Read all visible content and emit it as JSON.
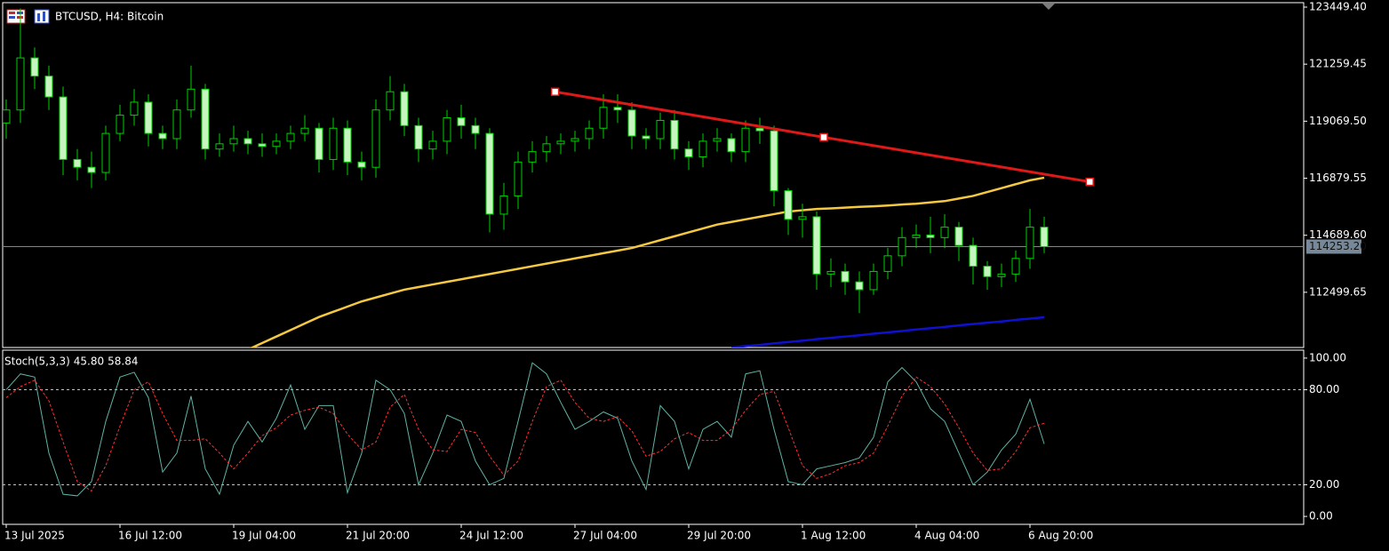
{
  "chart_data": [
    {
      "type": "candlestick",
      "title": "BTCUSD, H4:  Bitcoin",
      "up_fill": "#000000",
      "down_fill": "#c6f5c0",
      "outline": "#00d000",
      "open": [
        119000,
        119500,
        121500,
        120800,
        120000,
        117600,
        117300,
        117100,
        118600,
        119300,
        119800,
        118600,
        118400,
        119500,
        120300,
        118000,
        118200,
        118400,
        118200,
        118100,
        118300,
        118600,
        118800,
        117600,
        118800,
        117500,
        117300,
        119500,
        120200,
        118900,
        118000,
        118300,
        119200,
        118900,
        118600,
        115500,
        116200,
        117500,
        117900,
        118200,
        118300,
        118400,
        118800,
        119600,
        119500,
        118500,
        118400,
        119100,
        118000,
        117700,
        118300,
        118400,
        117900,
        118800,
        118700,
        116400,
        115300,
        115400,
        113200,
        113300,
        112900,
        112600,
        113300,
        113900,
        114600,
        114700,
        114600,
        115000,
        114300,
        113500,
        113100,
        113200,
        113800,
        115000
      ],
      "high": [
        119900,
        123400,
        121900,
        121200,
        120400,
        118000,
        117900,
        118900,
        119700,
        120300,
        120100,
        118900,
        119900,
        121200,
        120500,
        118600,
        118900,
        118700,
        118600,
        118600,
        118900,
        119300,
        119000,
        119200,
        119100,
        117900,
        119900,
        120800,
        120500,
        119200,
        118700,
        119500,
        119700,
        119200,
        118800,
        116700,
        117900,
        118300,
        118500,
        118600,
        118700,
        119100,
        120100,
        120100,
        119800,
        118800,
        119400,
        119500,
        118300,
        118600,
        118800,
        118600,
        119100,
        119200,
        118900,
        116500,
        115900,
        115600,
        113800,
        113600,
        113300,
        113600,
        114200,
        115000,
        115100,
        115400,
        115500,
        115200,
        114600,
        113700,
        113600,
        114100,
        115700,
        115400
      ],
      "low": [
        118400,
        119000,
        120300,
        119500,
        117000,
        116800,
        116500,
        116800,
        118300,
        118900,
        118100,
        118000,
        118000,
        119200,
        117600,
        117700,
        117900,
        117800,
        117700,
        117800,
        118000,
        118300,
        117100,
        117200,
        117000,
        116800,
        116900,
        119100,
        118500,
        117500,
        117600,
        117800,
        118400,
        118000,
        114800,
        114900,
        115700,
        117100,
        117500,
        117800,
        117900,
        118000,
        118400,
        119000,
        118000,
        118000,
        118000,
        117600,
        117200,
        117300,
        117900,
        117500,
        117500,
        118200,
        115800,
        114700,
        114600,
        112600,
        112700,
        112400,
        111700,
        112400,
        113000,
        113500,
        114200,
        114000,
        114200,
        113700,
        112800,
        112600,
        112700,
        112900,
        113400,
        114000
      ],
      "close": [
        119500,
        121500,
        120800,
        120000,
        117600,
        117300,
        117100,
        118600,
        119300,
        119800,
        118600,
        118400,
        119500,
        120300,
        118000,
        118200,
        118400,
        118200,
        118100,
        118300,
        118600,
        118800,
        117600,
        118800,
        117500,
        117300,
        119500,
        120200,
        118900,
        118000,
        118300,
        119200,
        118900,
        118600,
        115500,
        116200,
        117500,
        117900,
        118200,
        118300,
        118400,
        118800,
        119600,
        119500,
        118500,
        118400,
        119100,
        118000,
        117700,
        118300,
        118400,
        117900,
        118800,
        118700,
        116400,
        115300,
        115400,
        113200,
        113300,
        112900,
        112600,
        113300,
        113900,
        114600,
        114700,
        114600,
        115000,
        114300,
        113500,
        113100,
        113200,
        113800,
        115000,
        114253.2
      ],
      "lines": [
        {
          "color": "#f5c842",
          "values": [
            null,
            null,
            null,
            null,
            null,
            null,
            null,
            null,
            null,
            null,
            null,
            null,
            null,
            null,
            null,
            null,
            null,
            110300,
            110550,
            110800,
            111050,
            111300,
            111550,
            111750,
            111950,
            112150,
            112300,
            112450,
            112600,
            112700,
            112800,
            112900,
            113000,
            113100,
            113200,
            113300,
            113400,
            113500,
            113600,
            113700,
            113800,
            113900,
            114000,
            114100,
            114200,
            114350,
            114500,
            114650,
            114800,
            114950,
            115100,
            115200,
            115300,
            115400,
            115500,
            115600,
            115650,
            115700,
            115720,
            115750,
            115780,
            115800,
            115830,
            115870,
            115900,
            115950,
            116000,
            116100,
            116200,
            116350,
            116500,
            116650,
            116800,
            116900
          ]
        },
        {
          "color": "#1010d0",
          "values": [
            null,
            null,
            null,
            null,
            null,
            null,
            null,
            null,
            null,
            null,
            null,
            null,
            null,
            null,
            null,
            null,
            null,
            null,
            null,
            null,
            null,
            null,
            null,
            null,
            null,
            null,
            null,
            null,
            null,
            null,
            null,
            null,
            null,
            null,
            null,
            null,
            null,
            null,
            null,
            null,
            null,
            null,
            null,
            null,
            null,
            null,
            null,
            null,
            null,
            null,
            null,
            110380,
            110430,
            110480,
            110540,
            110590,
            110640,
            110700,
            110750,
            110800,
            110850,
            110910,
            110960,
            111010,
            111070,
            111120,
            111170,
            111230,
            111280,
            111330,
            111380,
            111440,
            111490,
            111540
          ]
        }
      ],
      "trendline": {
        "color": "#e01818",
        "x": [
          38.6,
          57.5,
          76.2
        ],
        "values": [
          120198,
          118453,
          116742
        ]
      },
      "last_price": {
        "value": 114253.2,
        "label": "114253.20"
      },
      "ylim": [
        110380,
        123620
      ],
      "yticks": [
        {
          "value": 123449.4,
          "label": "123449.40"
        },
        {
          "value": 121259.45,
          "label": "121259.45"
        },
        {
          "value": 119069.5,
          "label": "119069.50"
        },
        {
          "value": 116879.55,
          "label": "116879.55"
        },
        {
          "value": 114689.6,
          "label": "114689.60"
        },
        {
          "value": 112499.65,
          "label": "112499.65"
        }
      ],
      "xticks": [
        {
          "value": 0,
          "label": "13 Jul 2025"
        },
        {
          "value": 8,
          "label": "16 Jul 12:00"
        },
        {
          "value": 16,
          "label": "19 Jul 04:00"
        },
        {
          "value": 24,
          "label": "21 Jul 20:00"
        },
        {
          "value": 32,
          "label": "24 Jul 12:00"
        },
        {
          "value": 40,
          "label": "27 Jul 04:00"
        },
        {
          "value": 48,
          "label": "29 Jul 20:00"
        },
        {
          "value": 56,
          "label": "1 Aug 12:00"
        },
        {
          "value": 64,
          "label": "4 Aug 04:00"
        },
        {
          "value": 72,
          "label": "6 Aug 20:00"
        }
      ]
    },
    {
      "type": "stochastic",
      "title": "Stoch(5,3,3)",
      "readout": [
        {
          "value": 45.8,
          "label": "45.80"
        },
        {
          "value": 58.84,
          "label": "58.84"
        }
      ],
      "series": [
        {
          "color": "#5fb3a3",
          "dashed": false,
          "values": [
            80,
            90,
            88,
            40,
            14,
            13,
            22,
            60,
            88,
            91,
            75,
            28,
            40,
            76,
            30,
            14,
            45,
            60,
            47,
            62,
            83,
            55,
            70,
            70,
            15,
            40,
            86,
            80,
            65,
            20,
            40,
            64,
            60,
            35,
            20,
            24,
            60,
            97,
            90,
            72,
            55,
            60,
            66,
            62,
            35,
            17,
            70,
            60,
            30,
            55,
            60,
            50,
            90,
            92,
            55,
            22,
            20,
            30,
            32,
            34,
            37,
            50,
            85,
            94,
            85,
            68,
            60,
            40,
            20,
            28,
            42,
            52,
            74,
            45.8
          ]
        },
        {
          "color": "#ff3030",
          "dashed": true,
          "values": [
            75,
            82,
            86,
            73,
            47,
            22,
            16,
            32,
            57,
            80,
            85,
            65,
            48,
            48,
            49,
            40,
            30,
            40,
            51,
            56,
            64,
            67,
            69,
            65,
            52,
            42,
            47,
            69,
            77,
            55,
            42,
            41,
            55,
            53,
            38,
            26,
            35,
            60,
            82,
            86,
            72,
            62,
            60,
            63,
            54,
            38,
            41,
            49,
            53,
            48,
            48,
            55,
            67,
            77,
            79,
            56,
            32,
            24,
            27,
            32,
            34,
            40,
            57,
            76,
            88,
            82,
            71,
            56,
            40,
            29,
            30,
            41,
            56,
            58.84
          ]
        }
      ],
      "levels": [
        80,
        20
      ],
      "ylim": [
        -5,
        105
      ],
      "yticks": [
        {
          "value": 100,
          "label": "100.00"
        },
        {
          "value": 80,
          "label": "80.00"
        },
        {
          "value": 20,
          "label": "20.00"
        },
        {
          "value": 0,
          "label": "0.00"
        }
      ]
    }
  ]
}
